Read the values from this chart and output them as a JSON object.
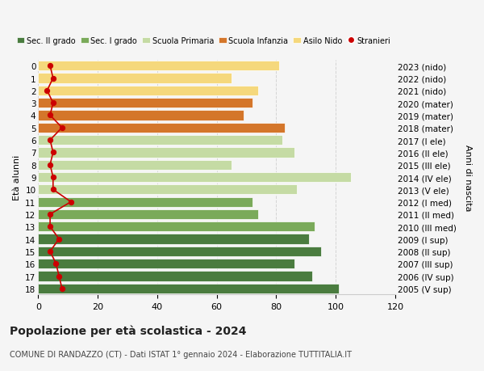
{
  "ages": [
    18,
    17,
    16,
    15,
    14,
    13,
    12,
    11,
    10,
    9,
    8,
    7,
    6,
    5,
    4,
    3,
    2,
    1,
    0
  ],
  "right_labels": [
    "2005 (V sup)",
    "2006 (IV sup)",
    "2007 (III sup)",
    "2008 (II sup)",
    "2009 (I sup)",
    "2010 (III med)",
    "2011 (II med)",
    "2012 (I med)",
    "2013 (V ele)",
    "2014 (IV ele)",
    "2015 (III ele)",
    "2016 (II ele)",
    "2017 (I ele)",
    "2018 (mater)",
    "2019 (mater)",
    "2020 (mater)",
    "2021 (nido)",
    "2022 (nido)",
    "2023 (nido)"
  ],
  "bar_values": [
    101,
    92,
    86,
    95,
    91,
    93,
    74,
    72,
    87,
    105,
    65,
    86,
    82,
    83,
    69,
    72,
    74,
    65,
    81
  ],
  "bar_colors": [
    "#4a7c3f",
    "#4a7c3f",
    "#4a7c3f",
    "#4a7c3f",
    "#4a7c3f",
    "#7aaa5a",
    "#7aaa5a",
    "#7aaa5a",
    "#c5dba4",
    "#c5dba4",
    "#c5dba4",
    "#c5dba4",
    "#c5dba4",
    "#d4762a",
    "#d4762a",
    "#d4762a",
    "#f5d87c",
    "#f5d87c",
    "#f5d87c"
  ],
  "stranieri_values": [
    8,
    7,
    6,
    4,
    7,
    4,
    4,
    11,
    5,
    5,
    4,
    5,
    4,
    8,
    4,
    5,
    3,
    5,
    4
  ],
  "legend_labels": [
    "Sec. II grado",
    "Sec. I grado",
    "Scuola Primaria",
    "Scuola Infanzia",
    "Asilo Nido",
    "Stranieri"
  ],
  "legend_colors": [
    "#4a7c3f",
    "#7aaa5a",
    "#c5dba4",
    "#d4762a",
    "#f5d87c",
    "#cc0000"
  ],
  "title": "Popolazione per età scolastica - 2024",
  "subtitle": "COMUNE DI RANDAZZO (CT) - Dati ISTAT 1° gennaio 2024 - Elaborazione TUTTITALIA.IT",
  "ylabel_left": "Età alunni",
  "ylabel_right": "Anni di nascita",
  "xlim": [
    0,
    120
  ],
  "xticks": [
    0,
    20,
    40,
    60,
    80,
    100,
    120
  ],
  "bg_color": "#f5f5f5",
  "grid_color": "#cccccc"
}
